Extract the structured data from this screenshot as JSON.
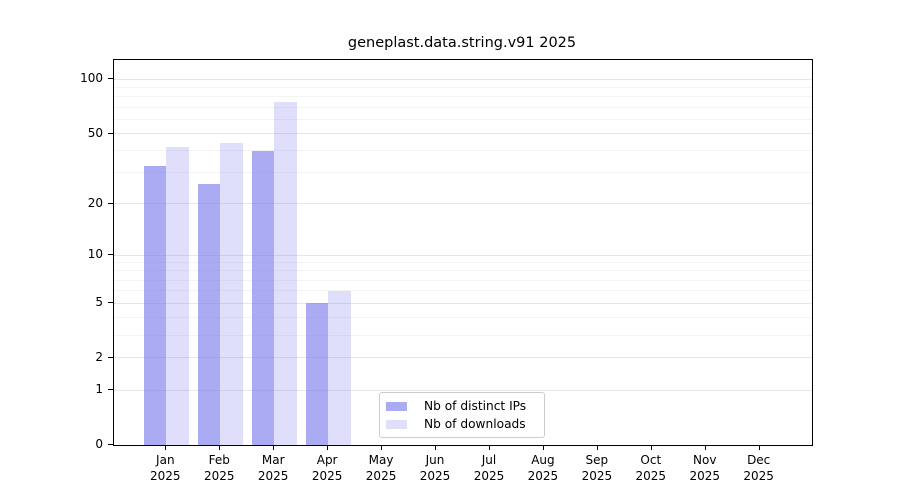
{
  "chart_data": {
    "type": "bar",
    "title": "geneplast.data.string.v91 2025",
    "categories": [
      "Jan",
      "Feb",
      "Mar",
      "Apr",
      "May",
      "Jun",
      "Jul",
      "Aug",
      "Sep",
      "Oct",
      "Nov",
      "Dec"
    ],
    "xtick_year": "2025",
    "series": [
      {
        "name": "Nb of distinct IPs",
        "color": "rgba(120,120,238,0.62)",
        "values": [
          33,
          26,
          40,
          5,
          0,
          0,
          0,
          0,
          0,
          0,
          0,
          0
        ]
      },
      {
        "name": "Nb of downloads",
        "color": "rgba(120,120,238,0.24)",
        "values": [
          42,
          44,
          75,
          6,
          0,
          0,
          0,
          0,
          0,
          0,
          0,
          0
        ]
      }
    ],
    "yscale": "log1p",
    "yticks": [
      0,
      1,
      2,
      5,
      10,
      20,
      50,
      100
    ],
    "minor_gridlines": [
      3,
      4,
      6,
      7,
      8,
      9,
      30,
      40,
      60,
      70,
      80,
      90
    ],
    "ylim": [
      0,
      128
    ],
    "grid": "horizontal",
    "legend_position": "lower-center-inside"
  },
  "colors": {
    "axis": "#000000",
    "major_grid": "#e6e6e6",
    "minor_grid": "#f3f3f3",
    "legend_border": "#cccccc",
    "background": "#ffffff"
  }
}
